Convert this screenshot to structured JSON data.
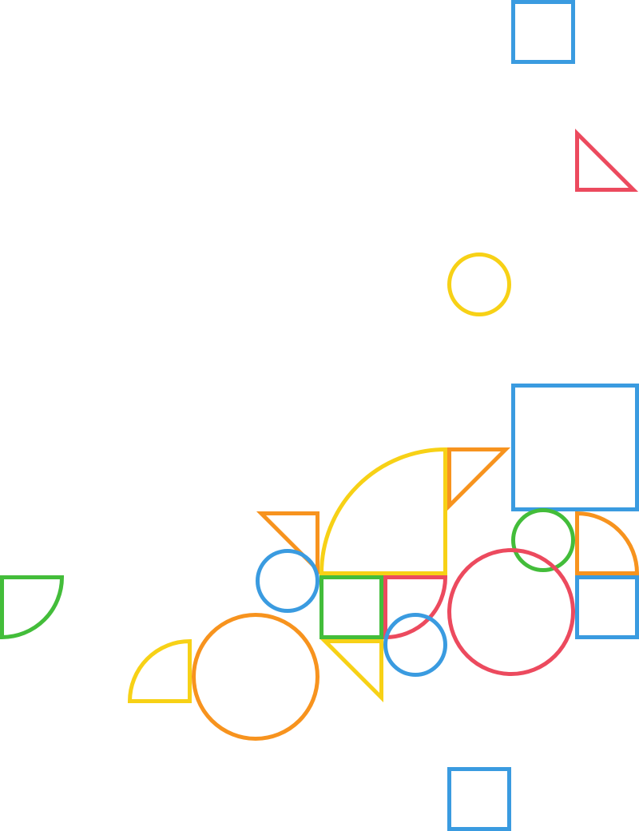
{
  "palette": {
    "blue": "#3a9be0",
    "red": "#ec4a5e",
    "yellow": "#f7d116",
    "green": "#43bd3a",
    "orange": "#f7931e"
  },
  "shapes": [
    {
      "kind": "square",
      "color": "blue",
      "name": "blue-square-top"
    },
    {
      "kind": "right-triangle",
      "color": "red",
      "name": "red-triangle-top-right"
    },
    {
      "kind": "circle",
      "color": "yellow",
      "name": "yellow-circle-small"
    },
    {
      "kind": "square",
      "color": "blue",
      "name": "blue-square-large"
    },
    {
      "kind": "quarter-circle",
      "color": "yellow",
      "name": "yellow-quarter-circle-large"
    },
    {
      "kind": "right-triangle",
      "color": "orange",
      "name": "orange-triangle-center"
    },
    {
      "kind": "right-triangle",
      "color": "orange",
      "name": "orange-triangle-left"
    },
    {
      "kind": "circle",
      "color": "green",
      "name": "green-circle-small"
    },
    {
      "kind": "quarter-circle",
      "color": "orange",
      "name": "orange-quarter-circle"
    },
    {
      "kind": "quarter-circle",
      "color": "green",
      "name": "green-quarter-circle-left"
    },
    {
      "kind": "circle",
      "color": "blue",
      "name": "blue-circle-left"
    },
    {
      "kind": "square",
      "color": "green",
      "name": "green-square-small"
    },
    {
      "kind": "quarter-circle",
      "color": "red",
      "name": "red-quarter-circle"
    },
    {
      "kind": "circle",
      "color": "red",
      "name": "red-circle-large"
    },
    {
      "kind": "square",
      "color": "blue",
      "name": "blue-square-right"
    },
    {
      "kind": "quarter-circle",
      "color": "yellow",
      "name": "yellow-quarter-circle-small"
    },
    {
      "kind": "right-triangle",
      "color": "yellow",
      "name": "yellow-triangle"
    },
    {
      "kind": "circle",
      "color": "blue",
      "name": "blue-circle-center"
    },
    {
      "kind": "circle",
      "color": "orange",
      "name": "orange-circle-large"
    },
    {
      "kind": "square",
      "color": "blue",
      "name": "blue-square-bottom"
    }
  ]
}
